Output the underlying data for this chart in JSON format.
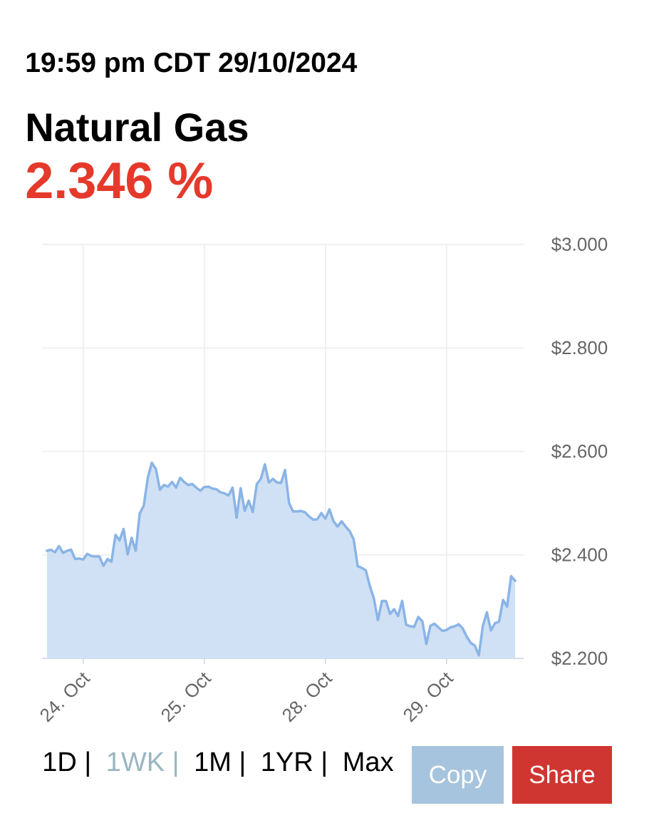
{
  "chart_data": {
    "type": "area",
    "title": "Natural Gas",
    "subtitle": "2.346 %",
    "annotations": [
      "19:59 pm CDT 29/10/2024",
      "1D |",
      "1WK |",
      "1M |",
      "1YR |",
      "Max",
      "Copy",
      "Share"
    ],
    "categories": [
      null,
      null,
      null,
      null,
      null,
      null,
      null,
      null,
      null,
      "24. Oct",
      null,
      null,
      null,
      null,
      null,
      null,
      null,
      null,
      null,
      null,
      null,
      null,
      null,
      null,
      null,
      null,
      null,
      null,
      null,
      null,
      null,
      null,
      null,
      null,
      null,
      null,
      null,
      null,
      null,
      "25. Oct",
      null,
      null,
      null,
      null,
      null,
      null,
      null,
      null,
      null,
      null,
      null,
      null,
      null,
      null,
      null,
      null,
      null,
      null,
      null,
      null,
      null,
      null,
      null,
      null,
      null,
      null,
      null,
      null,
      null,
      "28. Oct",
      null,
      null,
      null,
      null,
      null,
      null,
      null,
      null,
      null,
      null,
      null,
      null,
      null,
      null,
      null,
      null,
      null,
      null,
      null,
      null,
      null,
      null,
      null,
      null,
      null,
      null,
      null,
      null,
      null,
      "29. Oct",
      null,
      null,
      null,
      null,
      null,
      null,
      null,
      null,
      null,
      null,
      null,
      null,
      null,
      null,
      null,
      null,
      null
    ],
    "series": [
      {
        "color": "#8ab4e6",
        "values": [
          2.408,
          2.41,
          2.405,
          2.417,
          2.404,
          2.408,
          2.41,
          2.392,
          2.393,
          2.391,
          2.402,
          2.398,
          2.397,
          2.397,
          2.379,
          2.392,
          2.387,
          2.439,
          2.428,
          2.45,
          2.401,
          2.433,
          2.408,
          2.48,
          2.495,
          2.549,
          2.578,
          2.566,
          2.526,
          2.535,
          2.532,
          2.541,
          2.53,
          2.549,
          2.541,
          2.535,
          2.537,
          2.53,
          2.524,
          2.531,
          2.532,
          2.528,
          2.527,
          2.521,
          2.519,
          2.515,
          2.53,
          2.472,
          2.529,
          2.485,
          2.505,
          2.483,
          2.537,
          2.547,
          2.575,
          2.54,
          2.547,
          2.54,
          2.539,
          2.564,
          2.5,
          2.484,
          2.484,
          2.485,
          2.482,
          2.474,
          2.468,
          2.469,
          2.481,
          2.47,
          2.488,
          2.465,
          2.455,
          2.465,
          2.455,
          2.446,
          2.43,
          2.378,
          2.375,
          2.37,
          2.34,
          2.316,
          2.274,
          2.311,
          2.311,
          2.286,
          2.295,
          2.282,
          2.311,
          2.265,
          2.262,
          2.261,
          2.28,
          2.272,
          2.228,
          2.263,
          2.267,
          2.26,
          2.253,
          2.255,
          2.26,
          2.262,
          2.266,
          2.258,
          2.242,
          2.23,
          2.225,
          2.206,
          2.263,
          2.289,
          2.254,
          2.268,
          2.271,
          2.313,
          2.3,
          2.359,
          2.35
        ]
      }
    ],
    "ylim": [
      2.2,
      3.0
    ],
    "yticks": [
      {
        "value": 2.2,
        "label": "$2.200"
      },
      {
        "value": 2.4,
        "label": "$2.400"
      },
      {
        "value": 2.6,
        "label": "$2.600"
      },
      {
        "value": 2.8,
        "label": "$2.800"
      },
      {
        "value": 3.0,
        "label": "$3.000"
      }
    ],
    "grid": true
  }
}
